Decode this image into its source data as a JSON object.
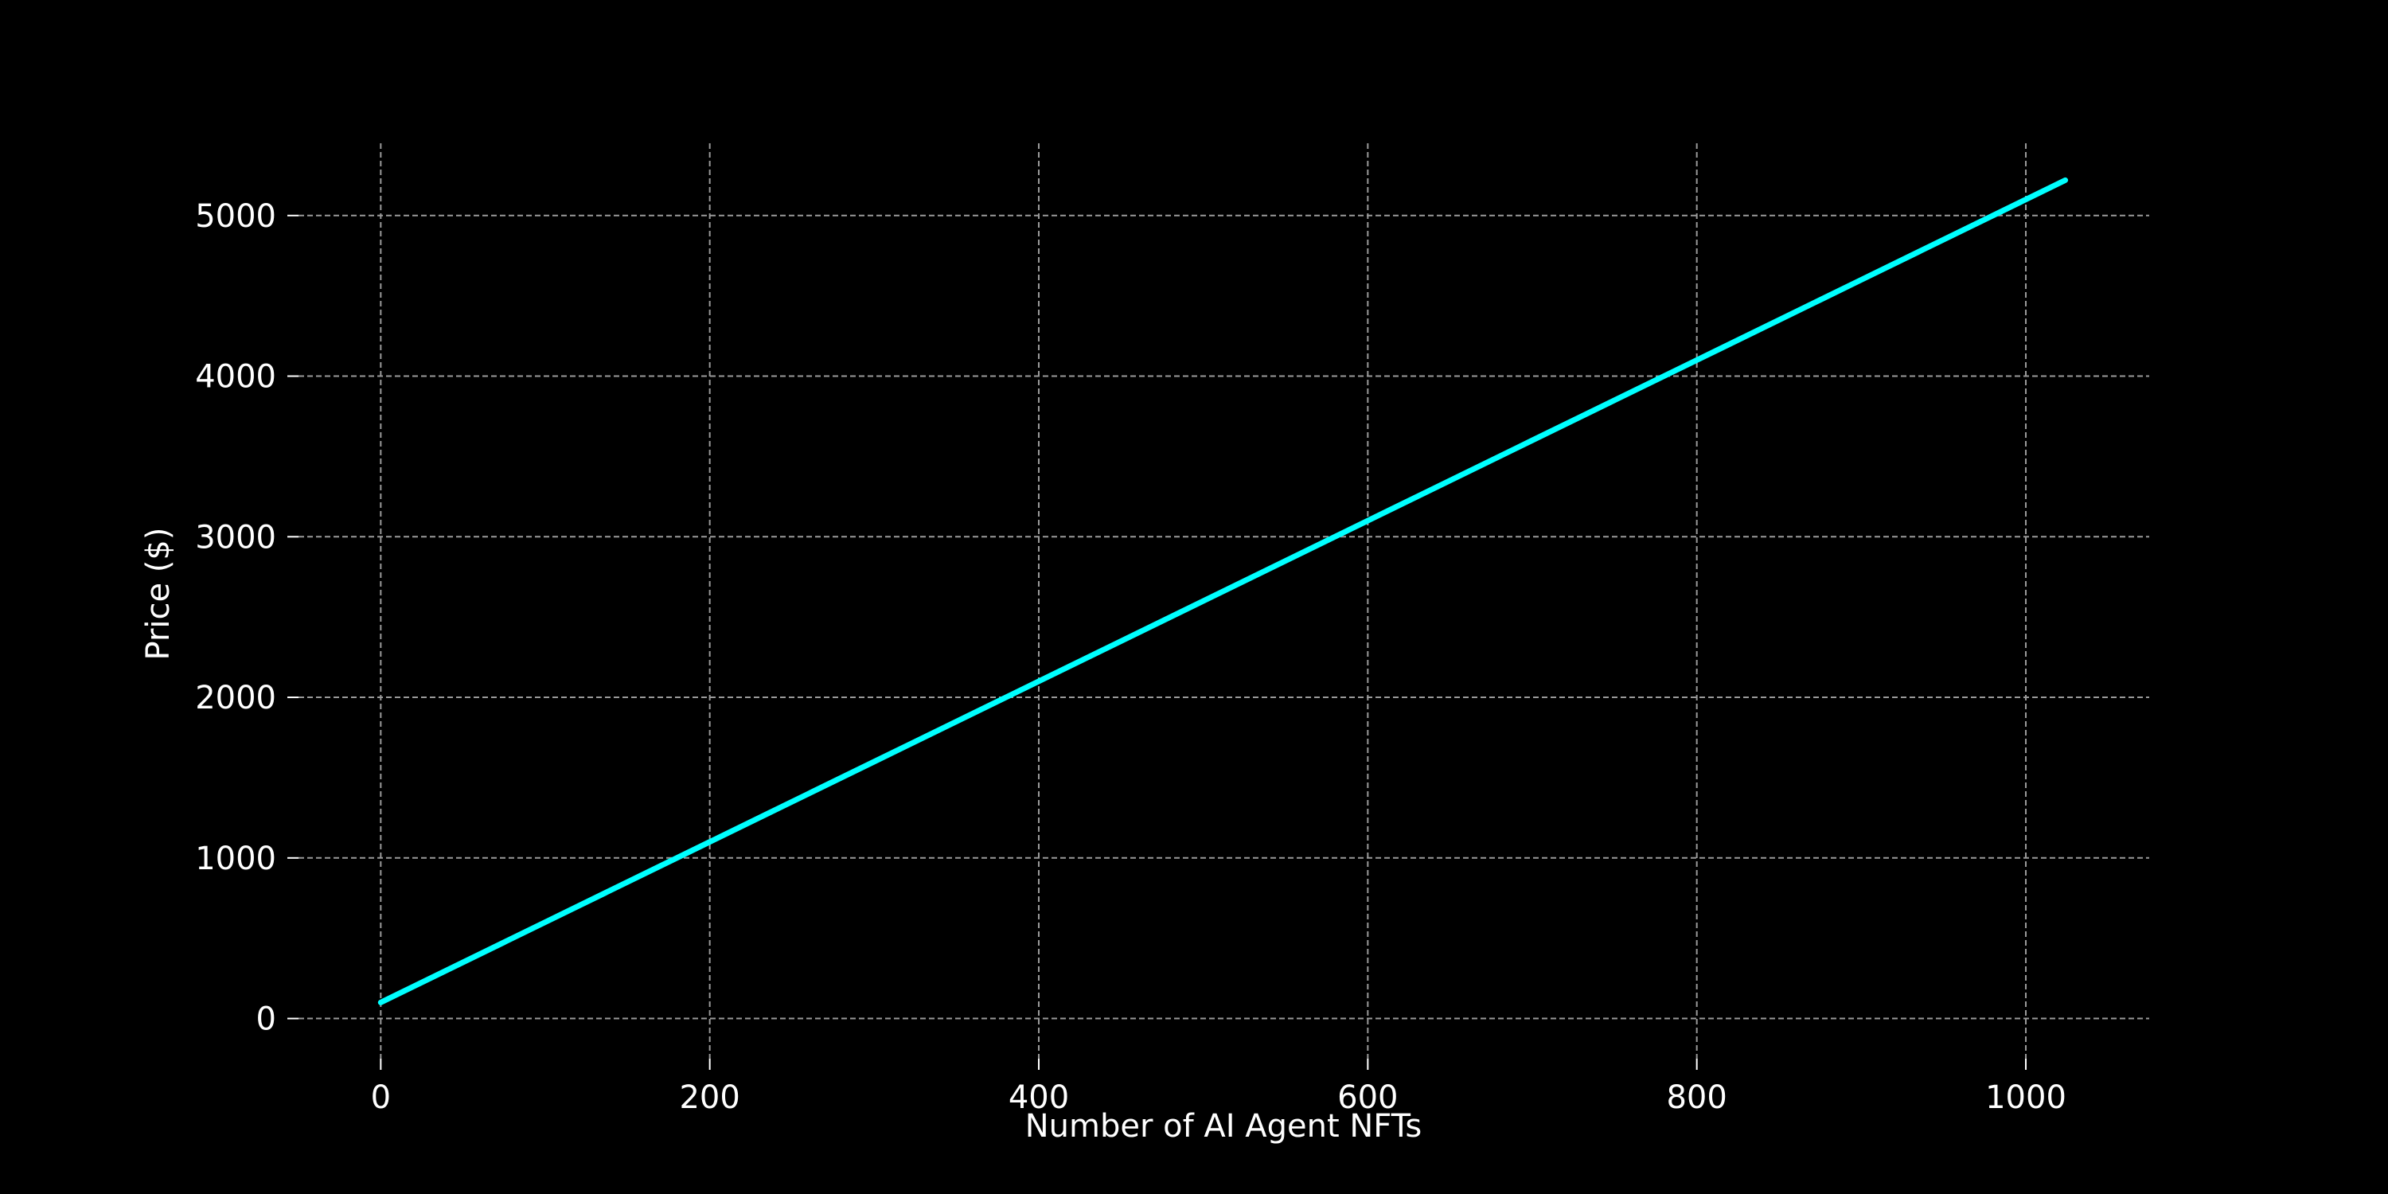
{
  "chart_data": {
    "type": "line",
    "title": "",
    "xlabel": "Number of AI Agent NFTs",
    "ylabel": "Price ($)",
    "xlim": [
      -50,
      1075
    ],
    "ylim": [
      -250,
      5450
    ],
    "xticks": [
      0,
      200,
      400,
      600,
      800,
      1000
    ],
    "yticks": [
      0,
      1000,
      2000,
      3000,
      4000,
      5000
    ],
    "grid": true,
    "background": "#000000",
    "colors": {
      "line": "#00ffff",
      "text": "#ffffff",
      "grid": "#9a9a9a"
    },
    "series": [
      {
        "x": [
          0,
          100,
          200,
          300,
          400,
          500,
          600,
          700,
          800,
          900,
          1000,
          1024
        ],
        "values": [
          100,
          600,
          1100,
          1600,
          2100,
          2600,
          3100,
          3600,
          4100,
          4600,
          5100,
          5220
        ]
      }
    ]
  }
}
